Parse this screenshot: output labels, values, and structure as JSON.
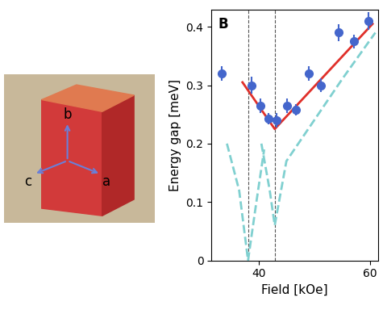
{
  "chart_data": {
    "type": "scatter",
    "panel_label": "B",
    "x_label": "Field [kOe]",
    "y_label": "Energy gap [meV]",
    "xlim": [
      31.5,
      61.5
    ],
    "ylim": [
      0,
      0.43
    ],
    "xticks": [
      40,
      60
    ],
    "yticks": [
      0,
      0.1,
      0.2,
      0.3,
      0.4
    ],
    "vlines": [
      38.1,
      42.9
    ],
    "series": [
      {
        "type": "scatter",
        "color": "#4466cc",
        "marker": "circle",
        "x": [
          33.4,
          38.7,
          40.3,
          41.8,
          43.2,
          45.1,
          46.7,
          49.0,
          51.2,
          54.4,
          57.2,
          59.8
        ],
        "values": [
          0.32,
          0.3,
          0.265,
          0.243,
          0.24,
          0.265,
          0.258,
          0.32,
          0.3,
          0.39,
          0.375,
          0.41
        ],
        "errors": [
          0.012,
          0.015,
          0.012,
          0.01,
          0.012,
          0.012,
          0.01,
          0.012,
          0.012,
          0.015,
          0.012,
          0.015
        ]
      },
      {
        "type": "line",
        "color": "#e0302a",
        "line_style": "solid",
        "x": [
          37.1,
          42.9,
          60.5
        ],
        "values": [
          0.305,
          0.225,
          0.405
        ]
      },
      {
        "type": "line",
        "color": "#80d0d0",
        "line_style": "dashed",
        "x": [
          34.3,
          36.5,
          38.1,
          39.6,
          41.0
        ],
        "values": [
          0.2,
          0.12,
          0.0,
          0.1,
          0.19
        ]
      },
      {
        "type": "line",
        "color": "#80d0d0",
        "line_style": "dashed",
        "x": [
          40.5,
          42.0,
          42.9,
          45.0,
          50.0,
          55.0,
          61.0
        ],
        "values": [
          0.2,
          0.12,
          0.06,
          0.17,
          0.24,
          0.31,
          0.39
        ]
      }
    ]
  },
  "photo": {
    "axis_labels": [
      "a",
      "b",
      "c"
    ]
  }
}
